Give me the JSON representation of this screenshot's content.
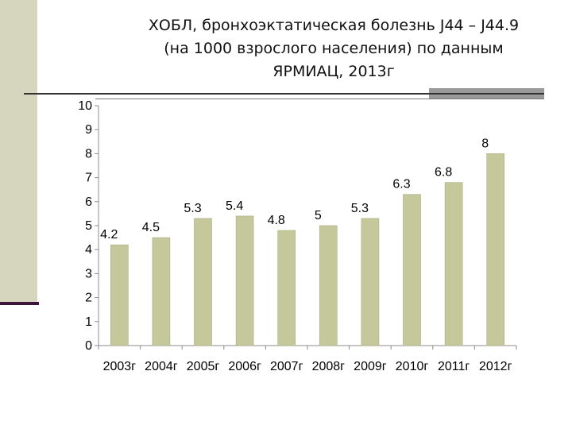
{
  "slide": {
    "title_lines": [
      "ХОБЛ, бронхоэктатическая болезнь J44 – J44.9",
      "(на 1000 взрослого населения) по данным",
      "ЯРМИАЦ, 2013г"
    ]
  },
  "colors": {
    "bar": "#c4c89a",
    "bar_edge": "#a9ad80",
    "side_panel": "#d6d6bf",
    "accent_line": "#3d1538"
  },
  "chart_data": {
    "type": "bar",
    "title": "ХОБЛ, бронхоэктатическая болезнь J44 – J44.9 (на 1000 взрослого населения) по данным ЯРМИАЦ, 2013г",
    "categories": [
      "2003г",
      "2004г",
      "2005г",
      "2006г",
      "2007г",
      "2008г",
      "2009г",
      "2010г",
      "2011г",
      "2012г"
    ],
    "values": [
      4.2,
      4.5,
      5.3,
      5.4,
      4.8,
      5,
      5.3,
      6.3,
      6.8,
      8
    ],
    "data_labels": [
      "4.2",
      "4.5",
      "5.3",
      "5.4",
      "4.8",
      "5",
      "5.3",
      "6.3",
      "6.8",
      "8"
    ],
    "yticks": [
      "0",
      "1",
      "2",
      "3",
      "4",
      "5",
      "6",
      "7",
      "8",
      "9",
      "10"
    ],
    "ylim": [
      0,
      10
    ],
    "xlabel": "",
    "ylabel": "",
    "grid": false,
    "legend": "none"
  }
}
